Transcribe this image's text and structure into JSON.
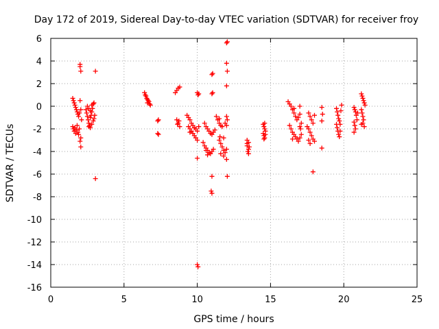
{
  "chart_data": {
    "type": "scatter",
    "title": "Day 172 of 2019, Sidereal Day-to-day VTEC variation (SDTVAR) for receiver froy",
    "xlabel": "GPS time / hours",
    "ylabel": "SDTVAR / TECUs",
    "xlim": [
      0,
      25
    ],
    "ylim": [
      -16,
      6
    ],
    "xticks": [
      0,
      5,
      10,
      15,
      20,
      25
    ],
    "yticks": [
      6,
      4,
      2,
      0,
      -2,
      -4,
      -6,
      -8,
      -10,
      -12,
      -14,
      -16
    ],
    "grid": true,
    "marker": "+",
    "color": "#ff0000",
    "series": [
      {
        "name": "froy",
        "points": [
          [
            1.5,
            0.7
          ],
          [
            1.55,
            0.5
          ],
          [
            1.6,
            0.3
          ],
          [
            1.65,
            0.1
          ],
          [
            1.7,
            -0.1
          ],
          [
            1.75,
            -0.3
          ],
          [
            1.8,
            -0.5
          ],
          [
            1.85,
            -0.7
          ],
          [
            1.9,
            -0.9
          ],
          [
            1.95,
            -0.6
          ],
          [
            1.5,
            -1.8
          ],
          [
            1.55,
            -2.0
          ],
          [
            1.6,
            -2.2
          ],
          [
            1.65,
            -1.9
          ],
          [
            1.7,
            -2.4
          ],
          [
            1.75,
            -2.1
          ],
          [
            1.8,
            -1.7
          ],
          [
            1.85,
            -2.3
          ],
          [
            1.9,
            -2.5
          ],
          [
            1.95,
            -2.0
          ],
          [
            2.0,
            3.7
          ],
          [
            2.0,
            3.5
          ],
          [
            2.05,
            3.1
          ],
          [
            2.0,
            0.5
          ],
          [
            2.05,
            -0.3
          ],
          [
            2.1,
            -1.2
          ],
          [
            2.05,
            -2.8
          ],
          [
            2.0,
            -3.1
          ],
          [
            2.05,
            -3.6
          ],
          [
            2.4,
            -0.3
          ],
          [
            2.45,
            -0.6
          ],
          [
            2.5,
            -0.9
          ],
          [
            2.55,
            -1.2
          ],
          [
            2.6,
            -1.5
          ],
          [
            2.65,
            -1.7
          ],
          [
            2.7,
            -1.0
          ],
          [
            2.75,
            -0.8
          ],
          [
            2.8,
            -0.5
          ],
          [
            2.85,
            -0.2
          ],
          [
            2.5,
            0.0
          ],
          [
            2.6,
            -0.2
          ],
          [
            2.7,
            -0.4
          ],
          [
            2.8,
            0.1
          ],
          [
            2.9,
            0.2
          ],
          [
            2.95,
            0.3
          ],
          [
            2.6,
            -1.8
          ],
          [
            2.7,
            -1.9
          ],
          [
            2.8,
            -1.6
          ],
          [
            2.9,
            -1.3
          ],
          [
            3.0,
            -0.8
          ],
          [
            2.95,
            -1.1
          ],
          [
            3.05,
            3.1
          ],
          [
            3.05,
            -6.4
          ],
          [
            6.4,
            1.2
          ],
          [
            6.45,
            1.0
          ],
          [
            6.5,
            0.9
          ],
          [
            6.55,
            0.7
          ],
          [
            6.6,
            0.6
          ],
          [
            6.65,
            0.5
          ],
          [
            6.7,
            0.4
          ],
          [
            6.75,
            0.2
          ],
          [
            6.8,
            0.1
          ],
          [
            6.6,
            0.3
          ],
          [
            7.3,
            -1.3
          ],
          [
            7.35,
            -1.2
          ],
          [
            7.3,
            -2.4
          ],
          [
            7.35,
            -2.5
          ],
          [
            8.5,
            1.2
          ],
          [
            8.6,
            1.4
          ],
          [
            8.7,
            1.6
          ],
          [
            8.8,
            1.7
          ],
          [
            8.6,
            -1.2
          ],
          [
            8.7,
            -1.5
          ],
          [
            8.8,
            -1.8
          ],
          [
            8.65,
            -1.6
          ],
          [
            8.75,
            -1.3
          ],
          [
            9.3,
            -0.8
          ],
          [
            9.4,
            -1.0
          ],
          [
            9.5,
            -1.2
          ],
          [
            9.6,
            -1.5
          ],
          [
            9.7,
            -1.7
          ],
          [
            9.8,
            -1.9
          ],
          [
            9.9,
            -2.0
          ],
          [
            10.0,
            -2.2
          ],
          [
            10.1,
            -1.8
          ],
          [
            9.4,
            -1.8
          ],
          [
            9.5,
            -2.0
          ],
          [
            9.6,
            -2.2
          ],
          [
            9.7,
            -2.4
          ],
          [
            9.8,
            -2.6
          ],
          [
            9.9,
            -2.8
          ],
          [
            10.0,
            -3.0
          ],
          [
            9.5,
            -2.3
          ],
          [
            10.0,
            1.2
          ],
          [
            10.05,
            1.0
          ],
          [
            10.1,
            1.1
          ],
          [
            10.0,
            -4.6
          ],
          [
            10.0,
            -14.0
          ],
          [
            10.05,
            -14.2
          ],
          [
            10.5,
            -1.5
          ],
          [
            10.6,
            -1.8
          ],
          [
            10.7,
            -2.0
          ],
          [
            10.8,
            -2.2
          ],
          [
            10.9,
            -2.4
          ],
          [
            11.0,
            -2.5
          ],
          [
            11.1,
            -2.3
          ],
          [
            11.2,
            -2.1
          ],
          [
            10.4,
            -3.2
          ],
          [
            10.5,
            -3.5
          ],
          [
            10.6,
            -3.7
          ],
          [
            10.7,
            -3.9
          ],
          [
            10.8,
            -4.1
          ],
          [
            10.9,
            -4.2
          ],
          [
            11.0,
            -4.0
          ],
          [
            11.1,
            -3.8
          ],
          [
            10.6,
            -3.9
          ],
          [
            10.7,
            -4.3
          ],
          [
            11.0,
            2.8
          ],
          [
            11.05,
            2.9
          ],
          [
            11.0,
            1.1
          ],
          [
            11.05,
            1.2
          ],
          [
            11.0,
            -6.2
          ],
          [
            10.95,
            -7.5
          ],
          [
            11.0,
            -7.7
          ],
          [
            11.3,
            -0.9
          ],
          [
            11.4,
            -1.2
          ],
          [
            11.5,
            -1.5
          ],
          [
            11.6,
            -1.7
          ],
          [
            11.7,
            -1.8
          ],
          [
            11.5,
            -1.1
          ],
          [
            11.5,
            -3.0
          ],
          [
            11.6,
            -3.3
          ],
          [
            11.7,
            -3.6
          ],
          [
            11.8,
            -3.9
          ],
          [
            11.9,
            -4.1
          ],
          [
            12.0,
            -3.8
          ],
          [
            11.6,
            -4.2
          ],
          [
            11.8,
            -4.4
          ],
          [
            11.55,
            -2.7
          ],
          [
            11.8,
            -2.8
          ],
          [
            12.0,
            -0.9
          ],
          [
            12.05,
            -1.2
          ],
          [
            11.9,
            -1.5
          ],
          [
            12.0,
            -1.7
          ],
          [
            12.0,
            5.6
          ],
          [
            12.05,
            5.7
          ],
          [
            12.0,
            3.8
          ],
          [
            12.05,
            3.1
          ],
          [
            12.0,
            1.8
          ],
          [
            12.05,
            -6.2
          ],
          [
            12.0,
            -4.7
          ],
          [
            13.4,
            -3.0
          ],
          [
            13.5,
            -3.2
          ],
          [
            13.4,
            -3.5
          ],
          [
            13.5,
            -3.8
          ],
          [
            13.45,
            -4.0
          ],
          [
            13.5,
            -4.2
          ],
          [
            13.4,
            -3.3
          ],
          [
            13.55,
            -3.6
          ],
          [
            14.5,
            -1.6
          ],
          [
            14.55,
            -1.8
          ],
          [
            14.6,
            -2.0
          ],
          [
            14.65,
            -2.2
          ],
          [
            14.5,
            -2.4
          ],
          [
            14.55,
            -2.6
          ],
          [
            14.6,
            -2.8
          ],
          [
            14.65,
            -2.5
          ],
          [
            14.55,
            -2.9
          ],
          [
            14.6,
            -1.5
          ],
          [
            16.2,
            0.4
          ],
          [
            16.3,
            0.2
          ],
          [
            16.4,
            0.0
          ],
          [
            16.5,
            -0.3
          ],
          [
            16.6,
            -0.6
          ],
          [
            16.7,
            -0.9
          ],
          [
            16.8,
            -1.2
          ],
          [
            16.9,
            -1.0
          ],
          [
            17.0,
            -0.7
          ],
          [
            16.6,
            -0.2
          ],
          [
            16.3,
            -1.7
          ],
          [
            16.4,
            -2.0
          ],
          [
            16.5,
            -2.3
          ],
          [
            16.6,
            -2.5
          ],
          [
            16.7,
            -2.7
          ],
          [
            16.8,
            -2.9
          ],
          [
            16.9,
            -3.1
          ],
          [
            17.0,
            -2.8
          ],
          [
            17.1,
            -2.5
          ],
          [
            16.5,
            -2.9
          ],
          [
            17.0,
            -1.8
          ],
          [
            17.05,
            -2.0
          ],
          [
            17.1,
            -1.5
          ],
          [
            17.0,
            0.0
          ],
          [
            17.5,
            -1.8
          ],
          [
            17.6,
            -2.0
          ],
          [
            17.7,
            -2.3
          ],
          [
            17.8,
            -2.6
          ],
          [
            17.9,
            -2.9
          ],
          [
            18.0,
            -3.1
          ],
          [
            17.6,
            -3.0
          ],
          [
            17.7,
            -3.3
          ],
          [
            17.6,
            -0.6
          ],
          [
            17.7,
            -0.9
          ],
          [
            17.8,
            -1.2
          ],
          [
            17.9,
            -1.5
          ],
          [
            18.0,
            -0.8
          ],
          [
            17.9,
            -5.8
          ],
          [
            18.5,
            -0.1
          ],
          [
            18.55,
            -0.7
          ],
          [
            18.5,
            -1.3
          ],
          [
            18.5,
            -3.7
          ],
          [
            19.5,
            -0.2
          ],
          [
            19.55,
            -0.5
          ],
          [
            19.6,
            -0.8
          ],
          [
            19.65,
            -1.1
          ],
          [
            19.7,
            -1.3
          ],
          [
            19.75,
            -1.6
          ],
          [
            19.8,
            -0.4
          ],
          [
            19.85,
            0.1
          ],
          [
            19.5,
            -1.6
          ],
          [
            19.55,
            -1.9
          ],
          [
            19.6,
            -2.2
          ],
          [
            19.65,
            -2.5
          ],
          [
            19.7,
            -2.7
          ],
          [
            19.75,
            -2.2
          ],
          [
            20.7,
            -0.1
          ],
          [
            20.75,
            -0.3
          ],
          [
            20.8,
            -0.5
          ],
          [
            20.85,
            -0.8
          ],
          [
            20.7,
            -1.4
          ],
          [
            20.75,
            -1.7
          ],
          [
            20.8,
            -2.0
          ],
          [
            20.7,
            -2.3
          ],
          [
            20.9,
            -1.2
          ],
          [
            20.95,
            -0.6
          ],
          [
            21.2,
            1.1
          ],
          [
            21.25,
            0.9
          ],
          [
            21.3,
            0.7
          ],
          [
            21.35,
            0.5
          ],
          [
            21.4,
            0.3
          ],
          [
            21.45,
            0.1
          ],
          [
            21.2,
            -0.3
          ],
          [
            21.25,
            -0.6
          ],
          [
            21.3,
            -0.9
          ],
          [
            21.35,
            -1.2
          ],
          [
            21.3,
            -1.5
          ],
          [
            21.4,
            -1.8
          ],
          [
            21.2,
            -1.6
          ]
        ]
      }
    ]
  }
}
